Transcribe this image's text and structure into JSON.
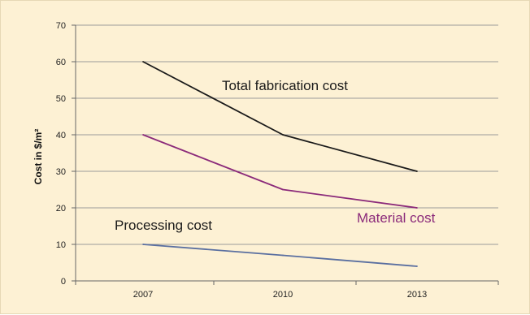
{
  "chart_data": {
    "type": "line",
    "ylabel": "Cost in $/m²",
    "xlabel": "",
    "title": "",
    "categories": [
      "2007",
      "2010",
      "2013"
    ],
    "ylim": [
      0,
      70
    ],
    "yticks": [
      "0",
      "10",
      "20",
      "30",
      "40",
      "50",
      "60",
      "70"
    ],
    "grid": true,
    "series": [
      {
        "name": "Total fabrication cost",
        "values": [
          60,
          40,
          30
        ],
        "color": "#1a1a1a"
      },
      {
        "name": "Material cost",
        "values": [
          40,
          25,
          20
        ],
        "color": "#8b2a7a"
      },
      {
        "name": "Processing cost",
        "values": [
          10,
          7,
          4
        ],
        "color": "#5a6fa0"
      }
    ]
  },
  "colors": {
    "background": "#fdf1d4",
    "grid": "#9a9a9a",
    "axis": "#666666"
  }
}
